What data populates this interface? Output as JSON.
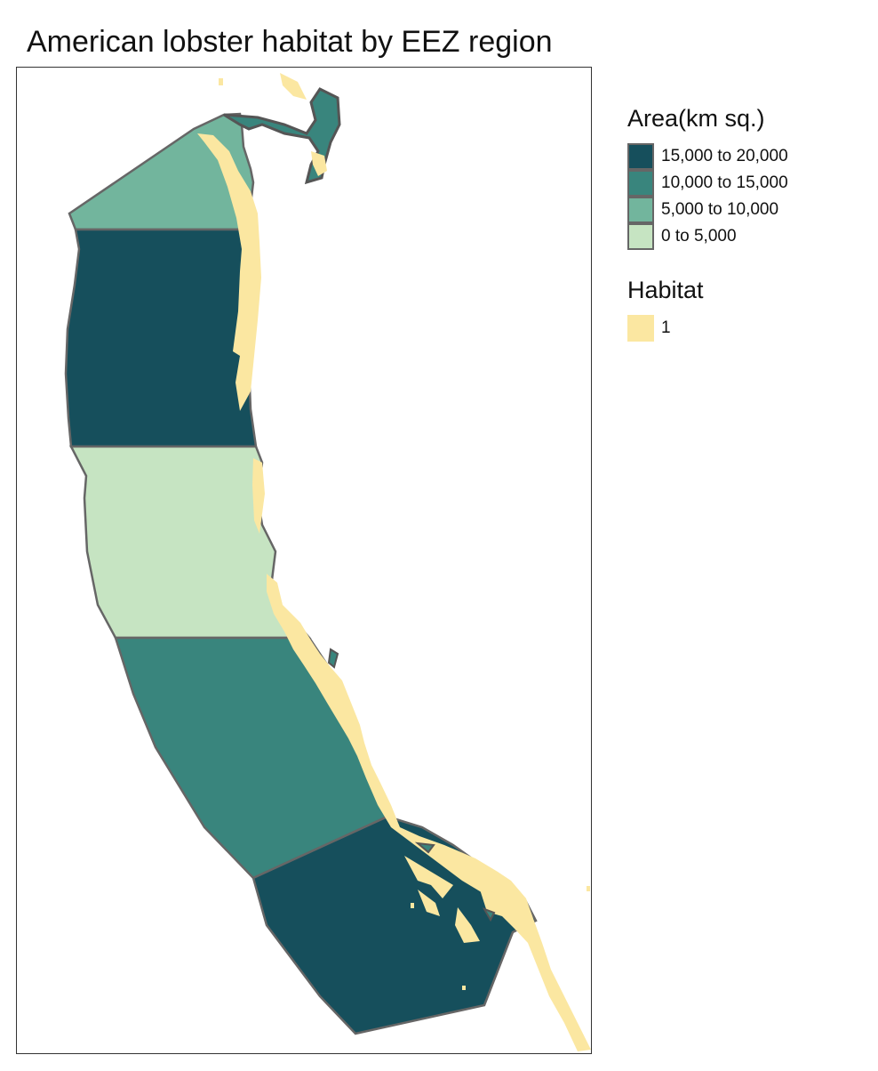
{
  "title": "American lobster habitat by EEZ region",
  "legend": {
    "area_title": "Area(km sq.)",
    "area_classes": [
      {
        "label": "15,000 to 20,000",
        "color": "#164f5c"
      },
      {
        "label": "10,000 to 15,000",
        "color": "#39857d"
      },
      {
        "label": "5,000 to 10,000",
        "color": "#72b59d"
      },
      {
        "label": "0 to 5,000",
        "color": "#c6e4c2"
      }
    ],
    "habitat_title": "Habitat",
    "habitat_classes": [
      {
        "label": "1",
        "color": "#fbe7a1"
      }
    ]
  },
  "colors": {
    "outline": "#666666",
    "frame": "#333333",
    "habitat": "#fbe7a1"
  }
}
